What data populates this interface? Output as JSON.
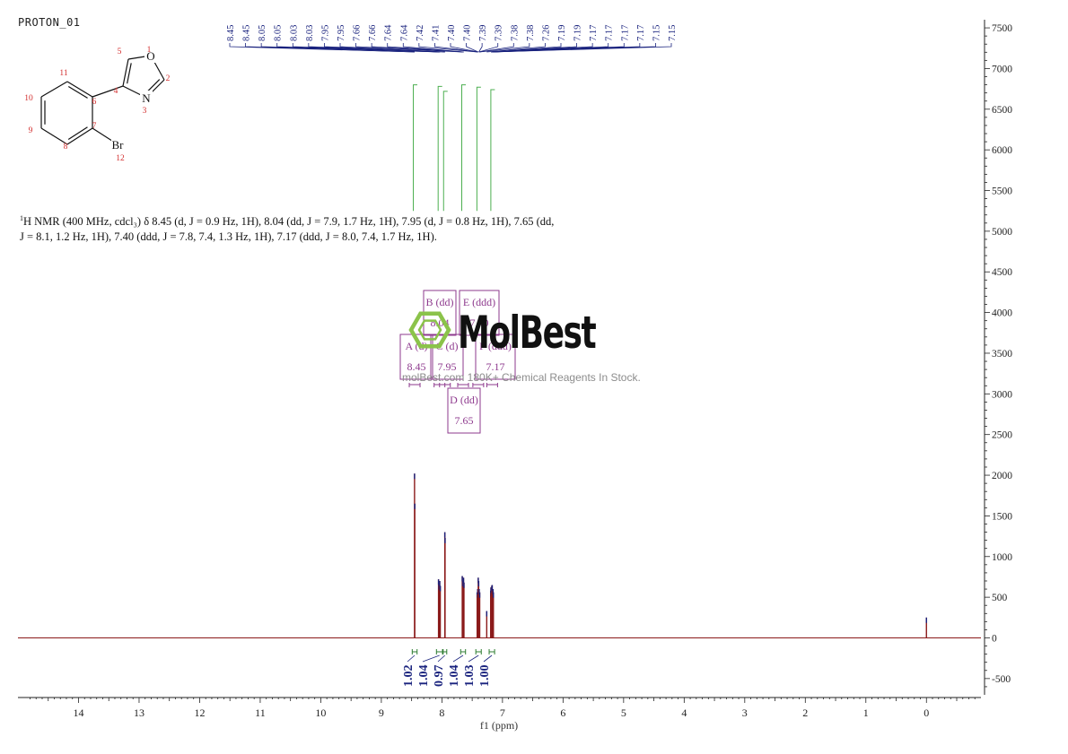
{
  "sample_id": "PROTON_01",
  "nmr_description": {
    "prefix_sup": "1",
    "text": "H NMR (400 MHz, cdcl₃) δ 8.45 (d, J = 0.9 Hz, 1H), 8.04 (dd, J = 7.9, 1.7 Hz, 1H), 7.95 (d, J = 0.8 Hz, 1H), 7.65 (dd, J = 8.1, 1.2 Hz, 1H), 7.40 (ddd, J = 7.8, 7.4, 1.3 Hz, 1H), 7.17 (ddd, J = 8.0, 7.4, 1.7 Hz, 1H)."
  },
  "watermark": {
    "brand": "MolBest",
    "tagline": "molBest.com 180K+ Chemical Reagents In Stock."
  },
  "structure": {
    "atoms": [
      {
        "symbol": "O",
        "number": "1"
      },
      {
        "symbol": "",
        "number": "2"
      },
      {
        "symbol": "N",
        "number": "3"
      },
      {
        "symbol": "",
        "number": "4"
      },
      {
        "symbol": "",
        "number": "5"
      },
      {
        "symbol": "",
        "number": "6"
      },
      {
        "symbol": "",
        "number": "7"
      },
      {
        "symbol": "",
        "number": "8"
      },
      {
        "symbol": "",
        "number": "9"
      },
      {
        "symbol": "",
        "number": "10"
      },
      {
        "symbol": "",
        "number": "11"
      },
      {
        "symbol": "Br",
        "number": "12"
      }
    ]
  },
  "colors": {
    "spectrum": "#8b1a1a",
    "peak_labels": "#1a237e",
    "integrals": "#2e7d32",
    "multiplets": "#8e3a8e",
    "atom_numbers": "#d32f2f",
    "logo": "#8bc34a"
  },
  "chart_data": {
    "type": "line",
    "xlabel": "f1 (ppm)",
    "xlim": [
      15,
      -0.9
    ],
    "ylim": [
      -700,
      7600
    ],
    "x_ticks": [
      14,
      13,
      12,
      11,
      10,
      9,
      8,
      7,
      6,
      5,
      4,
      3,
      2,
      1,
      0
    ],
    "y_ticks": [
      7500,
      7000,
      6500,
      6000,
      5500,
      5000,
      4500,
      4000,
      3500,
      3000,
      2500,
      2000,
      1500,
      1000,
      500,
      0,
      -500
    ],
    "peaks": [
      {
        "ppm": 8.452,
        "height": 2020
      },
      {
        "ppm": 8.448,
        "height": 1650
      },
      {
        "ppm": 8.056,
        "height": 720
      },
      {
        "ppm": 8.047,
        "height": 660
      },
      {
        "ppm": 8.036,
        "height": 700
      },
      {
        "ppm": 8.027,
        "height": 640
      },
      {
        "ppm": 7.952,
        "height": 1300
      },
      {
        "ppm": 7.948,
        "height": 1230
      },
      {
        "ppm": 7.664,
        "height": 760
      },
      {
        "ppm": 7.657,
        "height": 700
      },
      {
        "ppm": 7.643,
        "height": 740
      },
      {
        "ppm": 7.636,
        "height": 680
      },
      {
        "ppm": 7.418,
        "height": 560
      },
      {
        "ppm": 7.41,
        "height": 600
      },
      {
        "ppm": 7.4,
        "height": 740
      },
      {
        "ppm": 7.393,
        "height": 700
      },
      {
        "ppm": 7.385,
        "height": 600
      },
      {
        "ppm": 7.376,
        "height": 560
      },
      {
        "ppm": 7.26,
        "height": 330
      },
      {
        "ppm": 7.195,
        "height": 580
      },
      {
        "ppm": 7.19,
        "height": 620
      },
      {
        "ppm": 7.176,
        "height": 640
      },
      {
        "ppm": 7.17,
        "height": 650
      },
      {
        "ppm": 7.156,
        "height": 600
      },
      {
        "ppm": 7.15,
        "height": 560
      },
      {
        "ppm": 0.0,
        "height": 250
      }
    ],
    "peak_labels": [
      "8.45",
      "8.45",
      "8.05",
      "8.05",
      "8.03",
      "8.03",
      "7.95",
      "7.95",
      "7.66",
      "7.66",
      "7.64",
      "7.64",
      "7.42",
      "7.41",
      "7.40",
      "7.40",
      "7.39",
      "7.39",
      "7.38",
      "7.38",
      "7.26",
      "7.19",
      "7.19",
      "7.17",
      "7.17",
      "7.17",
      "7.17",
      "7.15",
      "7.15"
    ],
    "integrals": [
      {
        "from": 8.49,
        "to": 8.41,
        "value": "1.02"
      },
      {
        "from": 8.09,
        "to": 7.99,
        "value": "1.04"
      },
      {
        "from": 7.98,
        "to": 7.92,
        "value": "0.97"
      },
      {
        "from": 7.69,
        "to": 7.61,
        "value": "1.04"
      },
      {
        "from": 7.44,
        "to": 7.35,
        "value": "1.03"
      },
      {
        "from": 7.22,
        "to": 7.13,
        "value": "1.00"
      }
    ],
    "multiplets": [
      {
        "id": "A",
        "mult": "d",
        "shift": "8.45"
      },
      {
        "id": "B",
        "mult": "dd",
        "shift": "8.04"
      },
      {
        "id": "C",
        "mult": "d",
        "shift": "7.95"
      },
      {
        "id": "D",
        "mult": "dd",
        "shift": "7.65"
      },
      {
        "id": "E",
        "mult": "ddd",
        "shift": "7.40"
      },
      {
        "id": "F",
        "mult": "ddd",
        "shift": "7.17"
      }
    ]
  }
}
